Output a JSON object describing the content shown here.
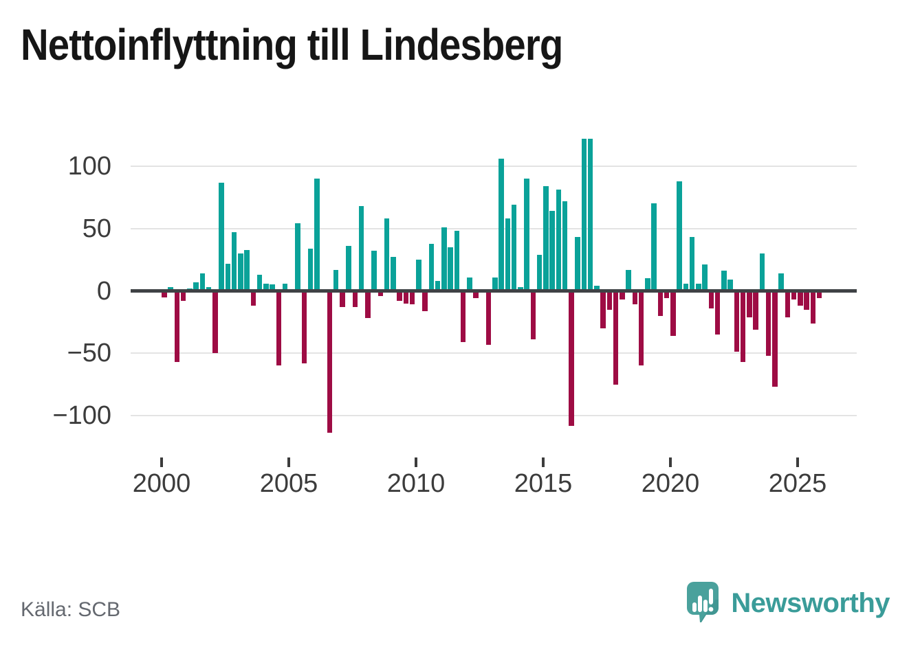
{
  "page": {
    "title": "Nettoinflyttning till Lindesberg",
    "source": "Källa: SCB"
  },
  "branding": {
    "logo_text": "Newsworthy",
    "logo_icon": "newsworthy-speech-bubble-with-bar-chart-and-exclamation"
  },
  "colors": {
    "positive": "#0aa299",
    "negative": "#9e0c44",
    "grid": "#e3e3e3",
    "zero_line": "#3f4245",
    "axis_text": "#3c3c3c",
    "title_text": "#161616",
    "source_text": "#64686f",
    "brand_teal": "#3a9c99",
    "brand_bubble": "#4aa19c",
    "brand_bubble_shade": "#3a8e8a"
  },
  "chart_data": {
    "type": "bar",
    "title": "Nettoinflyttning till Lindesberg",
    "xlabel": "",
    "ylabel": "",
    "frequency": "quarterly",
    "period_start": "2000Q1",
    "period_end": "2025Q4",
    "ylim": [
      -125,
      135
    ],
    "y_ticks": [
      100,
      50,
      0,
      -50,
      -100
    ],
    "x_ticks": [
      2000,
      2005,
      2010,
      2015,
      2020,
      2025
    ],
    "grid": true,
    "legend": "none",
    "positive_color": "#0aa299",
    "negative_color": "#9e0c44",
    "series_by_year": [
      {
        "year": 2000,
        "values": [
          -5,
          3,
          -57,
          -8
        ]
      },
      {
        "year": 2001,
        "values": [
          2,
          7,
          14,
          3
        ]
      },
      {
        "year": 2002,
        "values": [
          -50,
          87,
          22,
          47
        ]
      },
      {
        "year": 2003,
        "values": [
          30,
          33,
          -12,
          13
        ]
      },
      {
        "year": 2004,
        "values": [
          6,
          5,
          -60,
          6
        ]
      },
      {
        "year": 2005,
        "values": [
          0,
          54,
          -58,
          34
        ]
      },
      {
        "year": 2006,
        "values": [
          90,
          0,
          -114,
          17
        ]
      },
      {
        "year": 2007,
        "values": [
          -13,
          36,
          -13,
          68
        ]
      },
      {
        "year": 2008,
        "values": [
          -22,
          32,
          -4,
          58
        ]
      },
      {
        "year": 2009,
        "values": [
          27,
          -8,
          -10,
          -11
        ]
      },
      {
        "year": 2010,
        "values": [
          25,
          -16,
          38,
          8
        ]
      },
      {
        "year": 2011,
        "values": [
          51,
          35,
          48,
          -41
        ]
      },
      {
        "year": 2012,
        "values": [
          11,
          -6,
          0,
          -43
        ]
      },
      {
        "year": 2013,
        "values": [
          11,
          106,
          58,
          69
        ]
      },
      {
        "year": 2014,
        "values": [
          3,
          90,
          -39,
          29
        ]
      },
      {
        "year": 2015,
        "values": [
          84,
          64,
          81,
          72
        ]
      },
      {
        "year": 2016,
        "values": [
          -108,
          43,
          122,
          122
        ]
      },
      {
        "year": 2017,
        "values": [
          4,
          -30,
          -15,
          -75
        ]
      },
      {
        "year": 2018,
        "values": [
          -7,
          17,
          -11,
          -60
        ]
      },
      {
        "year": 2019,
        "values": [
          10,
          70,
          -20,
          -6
        ]
      },
      {
        "year": 2020,
        "values": [
          -36,
          88,
          6,
          43
        ]
      },
      {
        "year": 2021,
        "values": [
          6,
          21,
          -14,
          -35
        ]
      },
      {
        "year": 2022,
        "values": [
          16,
          9,
          -49,
          -57
        ]
      },
      {
        "year": 2023,
        "values": [
          -21,
          -31,
          30,
          -52
        ]
      },
      {
        "year": 2024,
        "values": [
          -77,
          14,
          -21,
          -7
        ]
      },
      {
        "year": 2025,
        "values": [
          -12,
          -15,
          -26,
          -6
        ]
      }
    ]
  }
}
